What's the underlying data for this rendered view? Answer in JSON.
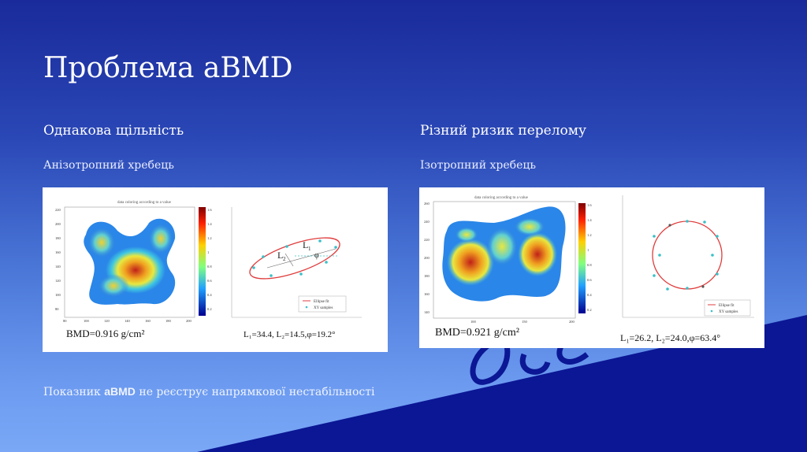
{
  "slide": {
    "title": "Проблема aBMD",
    "left": {
      "heading": "Однакова щільність",
      "subheading": "Анізотропний хребець",
      "figure": {
        "heatmap_title": "data coloring according to a value",
        "bmd": "BMD=0.916 g/cm²",
        "params": "L₁=34.4, L₂=14.5,φ=19.2°",
        "legend": [
          "Ellipse fit",
          "XY samples"
        ],
        "heatmap_y_ticks": [
          "220",
          "200",
          "180",
          "160",
          "140",
          "120",
          "100",
          "80"
        ],
        "heatmap_x_ticks": [
          "80",
          "100",
          "120",
          "140",
          "160",
          "180",
          "200"
        ],
        "colorbar_ticks": [
          "1.6",
          "1.4",
          "1.2",
          "1",
          "0.8",
          "0.6",
          "0.4",
          "0.2"
        ]
      }
    },
    "right": {
      "heading": "Різний ризик перелому",
      "subheading": "Ізотропний хребець",
      "figure": {
        "heatmap_title": "data coloring according to a value",
        "bmd": "BMD=0.921 g/cm²",
        "params": "L₁=26.2, L₂=24.0,φ=63.4°",
        "legend": [
          "Ellipse fit",
          "XY samples"
        ],
        "heatmap_y_ticks": [
          "260",
          "240",
          "220",
          "200",
          "180",
          "160",
          "140"
        ],
        "heatmap_x_ticks": [
          "100",
          "150",
          "200"
        ],
        "colorbar_ticks": [
          "1.6",
          "1.4",
          "1.2",
          "1",
          "0.8",
          "0.6",
          "0.4",
          "0.2"
        ]
      }
    },
    "footer": {
      "prefix": "Показник ",
      "bold": "aBMD",
      "suffix": " не реєструє напрямкової нестабільності"
    },
    "colors": {
      "accent_dark": "#0a1590",
      "ellipse": "#e03c3c",
      "samples": "#3ac0c8"
    }
  }
}
